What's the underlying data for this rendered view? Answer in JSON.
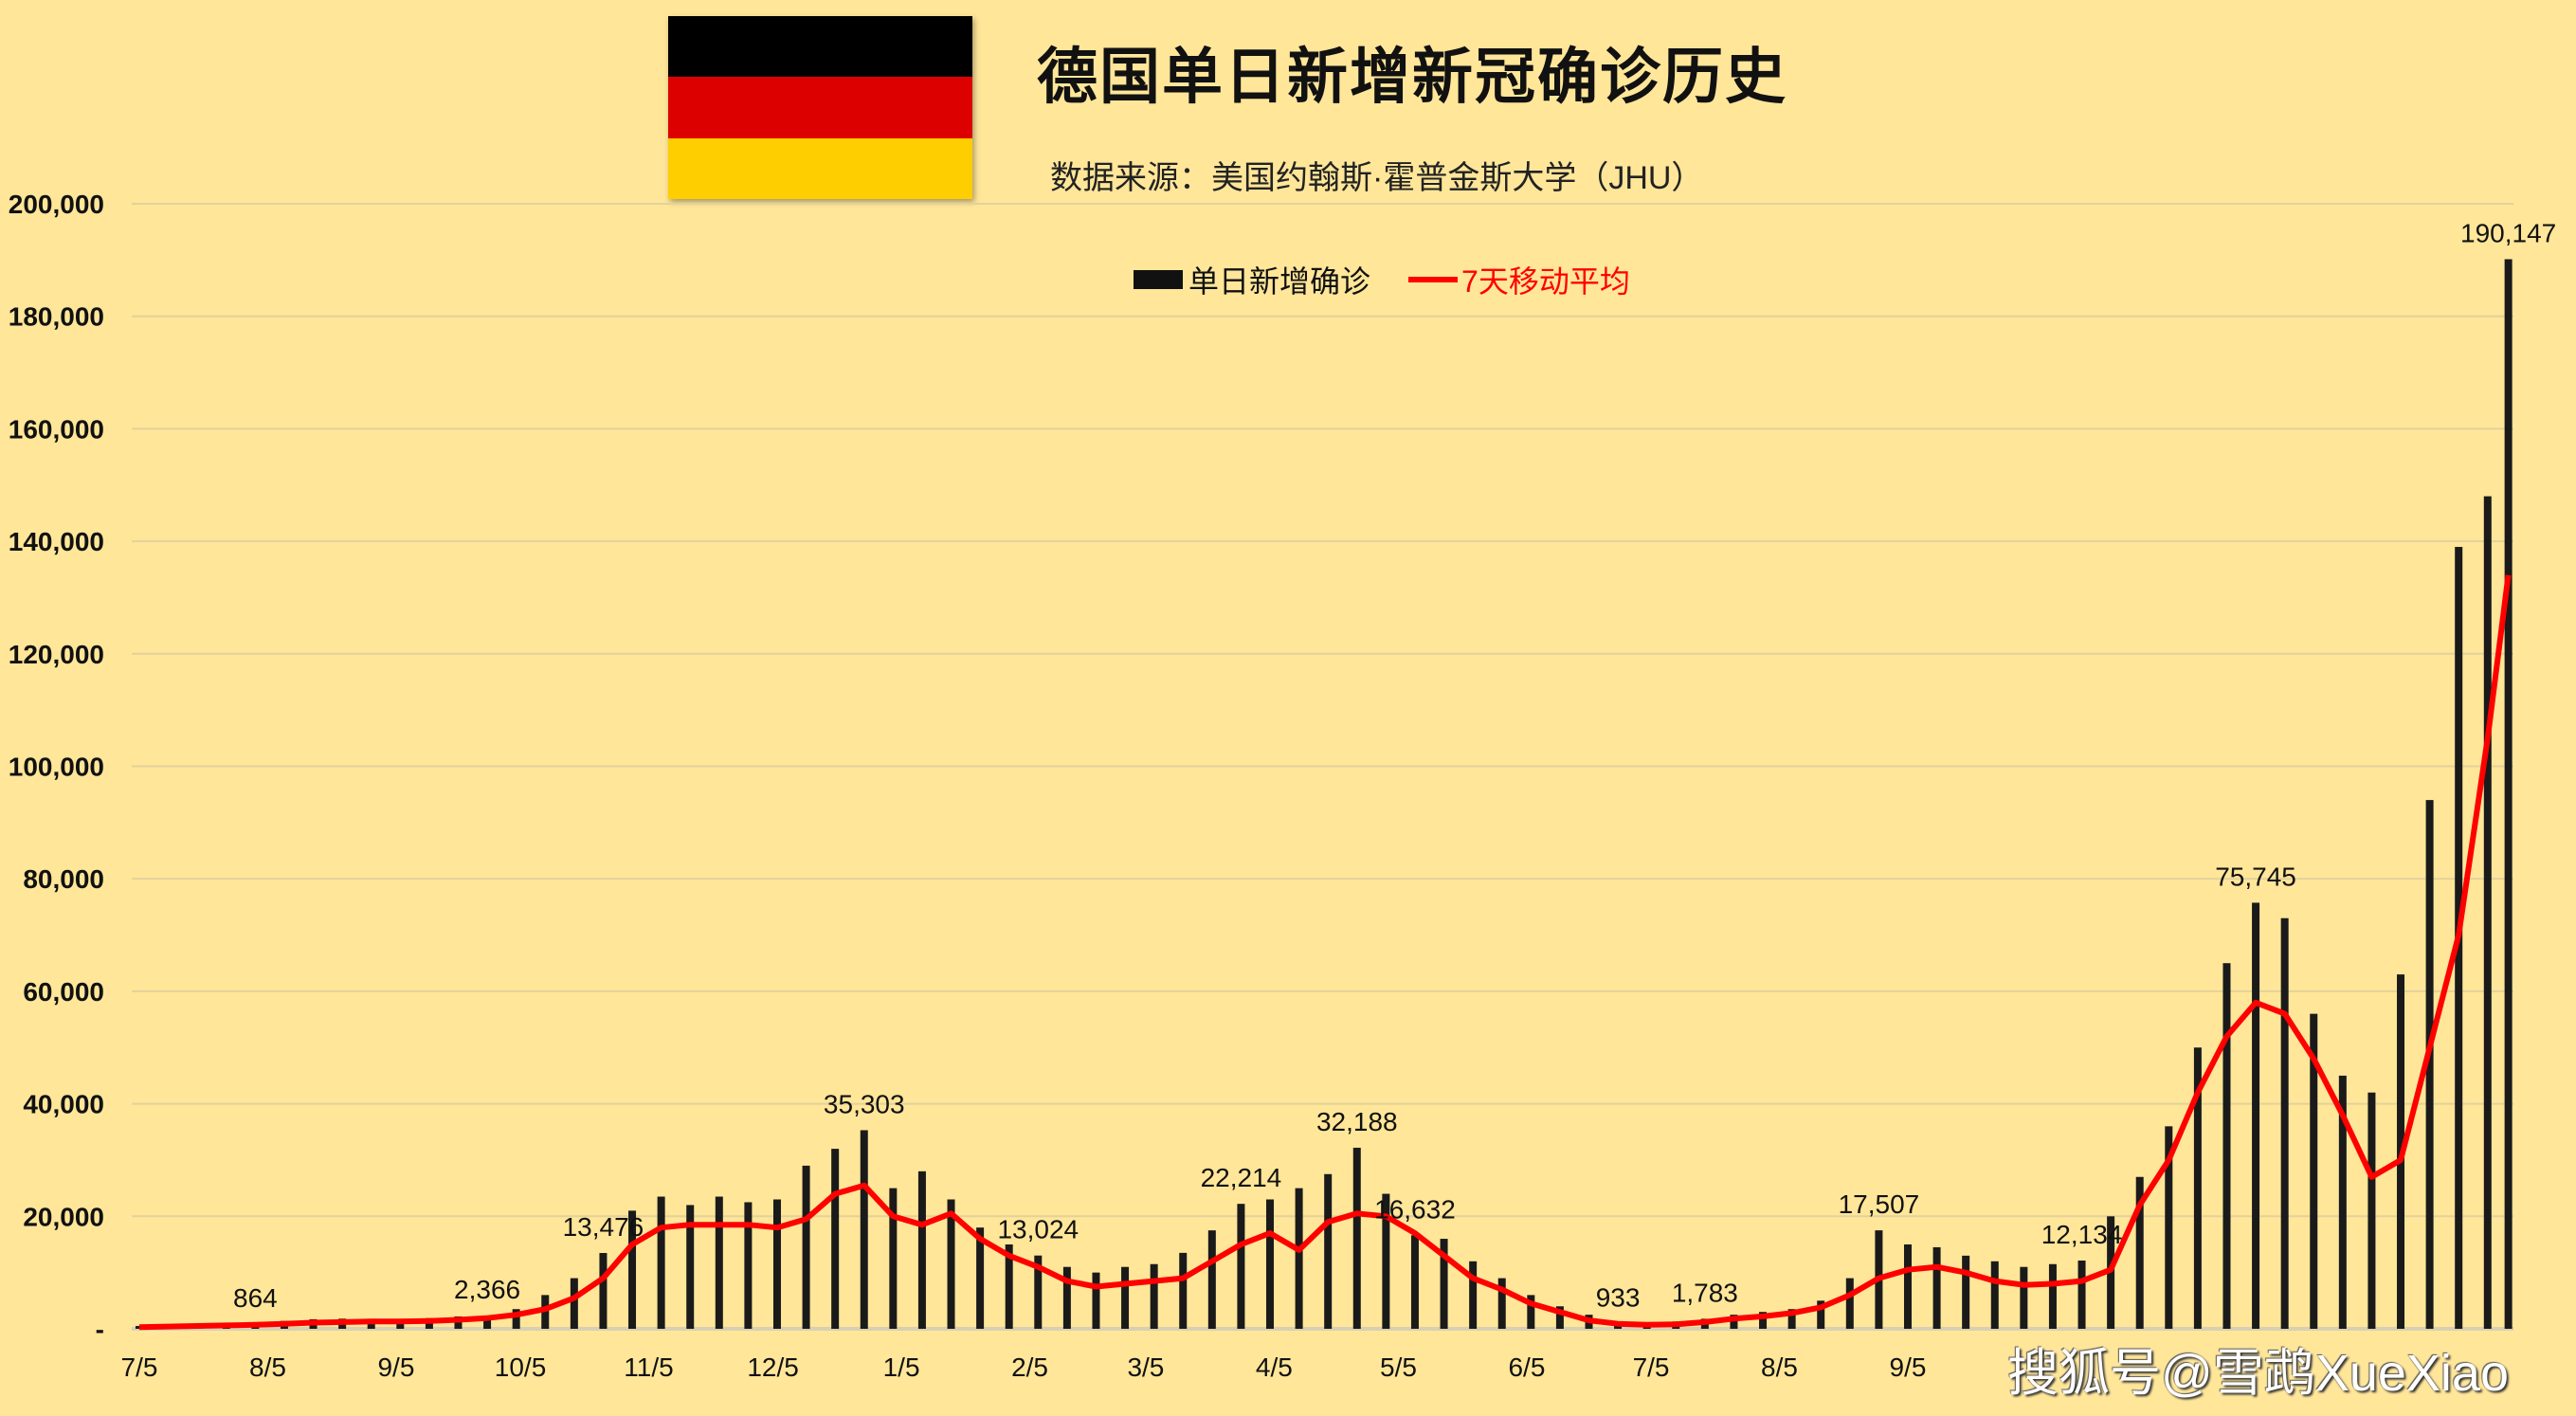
{
  "title": "德国单日新增新冠确诊历史",
  "subtitle": "数据来源：美国约翰斯·霍普金斯大学（JHU）",
  "watermark": "搜狐号@雪鹉XueXiao",
  "flag": {
    "name": "Germany",
    "colors": [
      "#000000",
      "#DD0000",
      "#FFCE00"
    ]
  },
  "colors": {
    "background": "#FFE699",
    "bars": "#1A1A1A",
    "line": "#FF0000",
    "grid": "#E2D29A"
  },
  "chart_data": {
    "type": "bar+line",
    "title": "德国单日新增新冠确诊历史",
    "legend": {
      "position": "top",
      "entries": [
        "单日新增确诊",
        "7天移动平均"
      ]
    },
    "ylim": [
      0,
      200000
    ],
    "grid": true,
    "y_ticks": [
      "-",
      "20,000",
      "40,000",
      "60,000",
      "80,000",
      "100,000",
      "120,000",
      "140,000",
      "160,000",
      "180,000",
      "200,000"
    ],
    "x_ticks": [
      {
        "date": "2020-07-05",
        "label": "7/5"
      },
      {
        "date": "2020-08-05",
        "label": "8/5"
      },
      {
        "date": "2020-09-05",
        "label": "9/5"
      },
      {
        "date": "2020-10-05",
        "label": "10/5"
      },
      {
        "date": "2020-11-05",
        "label": "11/5"
      },
      {
        "date": "2020-12-05",
        "label": "12/5"
      },
      {
        "date": "2021-01-05",
        "label": "1/5"
      },
      {
        "date": "2021-02-05",
        "label": "2/5"
      },
      {
        "date": "2021-03-05",
        "label": "3/5"
      },
      {
        "date": "2021-04-05",
        "label": "4/5"
      },
      {
        "date": "2021-05-05",
        "label": "5/5"
      },
      {
        "date": "2021-06-05",
        "label": "6/5"
      },
      {
        "date": "2021-07-05",
        "label": "7/5"
      },
      {
        "date": "2021-08-05",
        "label": "8/5"
      },
      {
        "date": "2021-09-05",
        "label": "9/5"
      }
    ],
    "x": [
      "2020-07-05",
      "2020-07-12",
      "2020-07-19",
      "2020-07-26",
      "2020-08-02",
      "2020-08-09",
      "2020-08-16",
      "2020-08-23",
      "2020-08-30",
      "2020-09-06",
      "2020-09-13",
      "2020-09-20",
      "2020-09-27",
      "2020-10-04",
      "2020-10-11",
      "2020-10-18",
      "2020-10-25",
      "2020-11-01",
      "2020-11-08",
      "2020-11-15",
      "2020-11-22",
      "2020-11-29",
      "2020-12-06",
      "2020-12-13",
      "2020-12-20",
      "2020-12-27",
      "2021-01-03",
      "2021-01-10",
      "2021-01-17",
      "2021-01-24",
      "2021-01-31",
      "2021-02-07",
      "2021-02-14",
      "2021-02-21",
      "2021-02-28",
      "2021-03-07",
      "2021-03-14",
      "2021-03-21",
      "2021-03-28",
      "2021-04-04",
      "2021-04-11",
      "2021-04-18",
      "2021-04-25",
      "2021-05-02",
      "2021-05-09",
      "2021-05-16",
      "2021-05-23",
      "2021-05-30",
      "2021-06-06",
      "2021-06-13",
      "2021-06-20",
      "2021-06-27",
      "2021-07-04",
      "2021-07-11",
      "2021-07-18",
      "2021-07-25",
      "2021-08-01",
      "2021-08-08",
      "2021-08-15",
      "2021-08-22",
      "2021-08-29",
      "2021-09-05",
      "2021-09-12",
      "2021-09-19",
      "2021-09-26",
      "2021-10-03",
      "2021-10-10",
      "2021-10-17",
      "2021-10-24",
      "2021-10-31",
      "2021-11-07",
      "2021-11-14",
      "2021-11-21",
      "2021-11-28",
      "2021-12-05",
      "2021-12-12",
      "2021-12-19",
      "2021-12-26",
      "2022-01-02",
      "2022-01-09",
      "2022-01-16",
      "2022-01-23",
      "2022-01-28"
    ],
    "series": [
      {
        "name": "单日新增确诊",
        "type": "bar",
        "values": [
          500,
          600,
          800,
          900,
          864,
          1400,
          1700,
          1800,
          1700,
          1700,
          1900,
          2200,
          2366,
          3500,
          6000,
          9000,
          13476,
          21000,
          23500,
          22000,
          23500,
          22500,
          23000,
          29000,
          32000,
          35303,
          25000,
          28000,
          23000,
          18000,
          15000,
          13024,
          11000,
          10000,
          11000,
          11500,
          13500,
          17500,
          22214,
          23000,
          25000,
          27500,
          32188,
          24000,
          16632,
          16000,
          12000,
          9000,
          6000,
          4000,
          2500,
          933,
          1000,
          1300,
          1783,
          2500,
          3000,
          3500,
          5000,
          9000,
          17507,
          15000,
          14500,
          13000,
          12000,
          11000,
          11500,
          12134,
          20000,
          27000,
          36000,
          50000,
          65000,
          75745,
          73000,
          56000,
          45000,
          42000,
          63000,
          94000,
          139000,
          148000,
          190147
        ]
      },
      {
        "name": "7天移动平均",
        "type": "line",
        "values": [
          300,
          400,
          500,
          600,
          700,
          900,
          1100,
          1200,
          1300,
          1300,
          1400,
          1600,
          1900,
          2500,
          3500,
          5500,
          9000,
          15000,
          18000,
          18500,
          18500,
          18500,
          18000,
          19500,
          24000,
          25500,
          20000,
          18500,
          20500,
          16000,
          13000,
          11000,
          8500,
          7500,
          8000,
          8500,
          9000,
          12000,
          15000,
          17000,
          14000,
          19000,
          20500,
          20000,
          17000,
          13000,
          9000,
          7000,
          4500,
          3000,
          1500,
          900,
          700,
          800,
          1200,
          1800,
          2200,
          2800,
          3800,
          6000,
          9000,
          10500,
          11000,
          10000,
          8500,
          7800,
          8000,
          8500,
          10500,
          22000,
          30000,
          42000,
          52000,
          58000,
          56000,
          48000,
          38000,
          27000,
          30000,
          50000,
          70000,
          105000,
          134000
        ]
      }
    ],
    "annotations": [
      {
        "date": "2020-08-02",
        "label": "864"
      },
      {
        "date": "2020-09-27",
        "label": "2,366"
      },
      {
        "date": "2020-10-25",
        "label": "13,476"
      },
      {
        "date": "2020-12-27",
        "label": "35,303"
      },
      {
        "date": "2021-02-07",
        "label": "13,024"
      },
      {
        "date": "2021-03-28",
        "label": "22,214"
      },
      {
        "date": "2021-04-25",
        "label": "32,188"
      },
      {
        "date": "2021-05-09",
        "label": "16,632"
      },
      {
        "date": "2021-06-27",
        "label": "933"
      },
      {
        "date": "2021-07-18",
        "label": "1,783"
      },
      {
        "date": "2021-08-29",
        "label": "17,507"
      },
      {
        "date": "2021-10-17",
        "label": "12,134"
      },
      {
        "date": "2021-11-28",
        "label": "75,745"
      },
      {
        "date": "2022-01-28",
        "label": "190,147"
      }
    ]
  }
}
